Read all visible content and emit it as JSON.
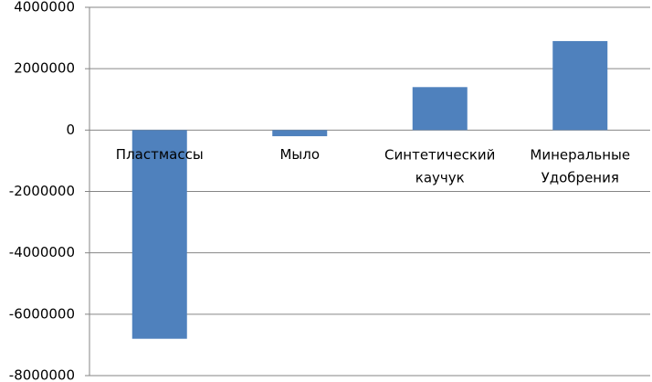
{
  "chart_data": {
    "type": "bar",
    "categories": [
      "Пластмассы",
      "Мыло",
      "Синтетический каучук",
      "Минеральные Удобрения"
    ],
    "values": [
      -6800000,
      -200000,
      1400000,
      2900000
    ],
    "color": "#4f81bd",
    "ylim": [
      -8000000,
      4000000
    ],
    "yticks": [
      -8000000,
      -6000000,
      -4000000,
      -2000000,
      0,
      2000000,
      4000000
    ],
    "grid": true
  }
}
